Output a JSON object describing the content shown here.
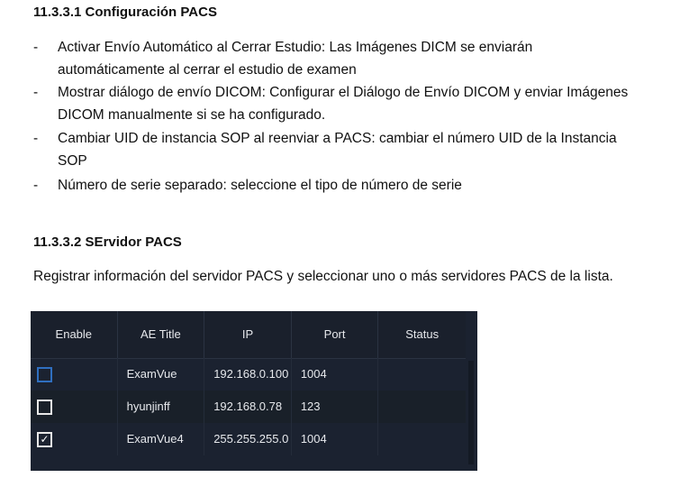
{
  "section1": {
    "title": "11.3.3.1 Configuración PACS",
    "bullets": [
      "Activar Envío Automático al Cerrar Estudio: Las Imágenes DICM se enviarán automáticamente al cerrar el estudio de examen",
      "Mostrar diálogo de envío DICOM: Configurar el Diálogo de Envío DICOM y enviar Imágenes DICOM manualmente si se ha configurado.",
      "Cambiar UID de instancia SOP al reenviar a PACS: cambiar el número UID de la Instancia SOP",
      "Número de serie separado: seleccione el tipo de número de serie"
    ]
  },
  "bullet_marker": "-",
  "section2": {
    "title": "11.3.3.2 SErvidor PACS",
    "paragraph": "Registrar información del servidor PACS y seleccionar uno o más servidores PACS de la lista."
  },
  "table": {
    "headers": [
      "Enable",
      "AE Title",
      "IP",
      "Port",
      "Status"
    ],
    "rows": [
      {
        "enabled": false,
        "focused": true,
        "ae_title": "ExamVue",
        "ip": "192.168.0.100",
        "port": "1004",
        "status": ""
      },
      {
        "enabled": false,
        "focused": false,
        "ae_title": "hyunjinff",
        "ip": "192.168.0.78",
        "port": "123",
        "status": ""
      },
      {
        "enabled": true,
        "focused": false,
        "ae_title": "ExamVue4",
        "ip": "255.255.255.0",
        "port": "1004",
        "status": ""
      }
    ],
    "colors": {
      "background": "#1b2230",
      "focus": "#2f6fc0"
    }
  }
}
